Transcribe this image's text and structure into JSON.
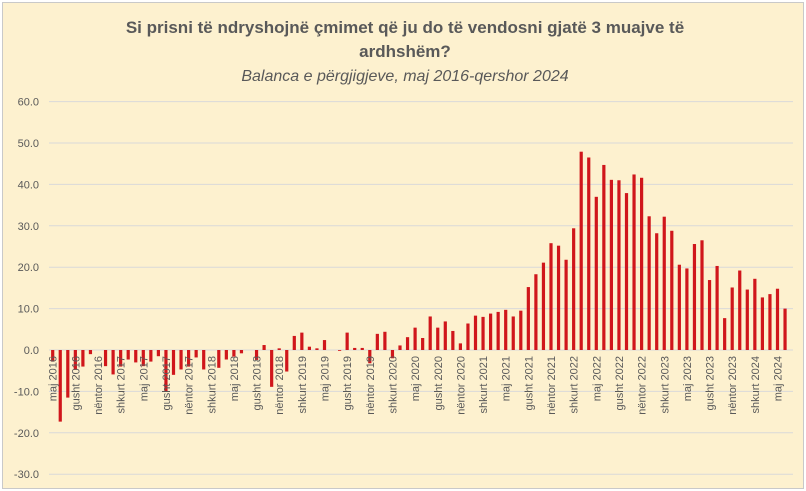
{
  "chart_data": {
    "type": "bar",
    "title_line1": "Si prisni të ndryshojnë çmimet që ju do të vendosni gjatë 3 muajve të",
    "title_line2": "ardhshëm?",
    "subtitle": "Balanca e përgjigjeve, maj 2016-qershor 2024",
    "xlabel": "",
    "ylabel": "",
    "ylim": [
      -30,
      60
    ],
    "yticks": [
      "-30.0",
      "-20.0",
      "-10.0",
      "0.0",
      "10.0",
      "20.0",
      "30.0",
      "40.0",
      "50.0",
      "60.0"
    ],
    "grid": true,
    "bar_color": "#d0161b",
    "x_tick_labels": [
      "maj 2016",
      "gusht 2016",
      "nëntor 2016",
      "shkurt 2017",
      "maj 2017",
      "gusht 2017",
      "nëntor 2017",
      "shkurt 2018",
      "maj 2018",
      "gusht 2018",
      "nëntor 2018",
      "shkurt 2019",
      "maj 2019",
      "gusht 2019",
      "nëntor 2019",
      "shkurt 2020",
      "maj 2020",
      "gusht 2020",
      "nëntor 2020",
      "shkurt 2021",
      "maj 2021",
      "gusht 2021",
      "nëntor 2021",
      "shkurt 2022",
      "maj 2022",
      "gusht 2022",
      "nëntor 2022",
      "shkurt 2023",
      "maj 2023",
      "gusht 2023",
      "nëntor 2023",
      "shkurt 2024",
      "maj 2024"
    ],
    "values": [
      -2.8,
      -17.3,
      -11.5,
      -4.8,
      -4.0,
      -1.0,
      0.0,
      -3.9,
      -5.9,
      -4.0,
      -2.3,
      -3.0,
      -3.9,
      -2.8,
      -1.5,
      -10.0,
      -6.0,
      -4.7,
      -4.0,
      -1.8,
      -4.7,
      0.0,
      -4.3,
      -2.3,
      -1.6,
      -0.8,
      0.0,
      -2.4,
      1.2,
      -8.9,
      0.4,
      -5.2,
      3.4,
      4.2,
      0.8,
      0.4,
      2.4,
      0.0,
      -0.2,
      4.2,
      0.5,
      0.5,
      -3.2,
      3.9,
      4.4,
      -2.0,
      1.1,
      3.1,
      5.4,
      2.9,
      8.1,
      5.4,
      6.9,
      4.6,
      1.6,
      6.4,
      8.3,
      8.0,
      8.8,
      9.2,
      9.7,
      8.1,
      9.5,
      15.2,
      18.3,
      21.1,
      25.8,
      25.2,
      21.8,
      29.4,
      47.9,
      46.5,
      37.0,
      44.7,
      41.1,
      41.0,
      37.9,
      42.4,
      41.6,
      32.3,
      28.2,
      32.2,
      28.8,
      20.6,
      19.7,
      25.6,
      26.5,
      16.9,
      20.3,
      7.7,
      15.1,
      19.2,
      14.6,
      17.2,
      12.7,
      13.5,
      14.8,
      10.0
    ]
  }
}
